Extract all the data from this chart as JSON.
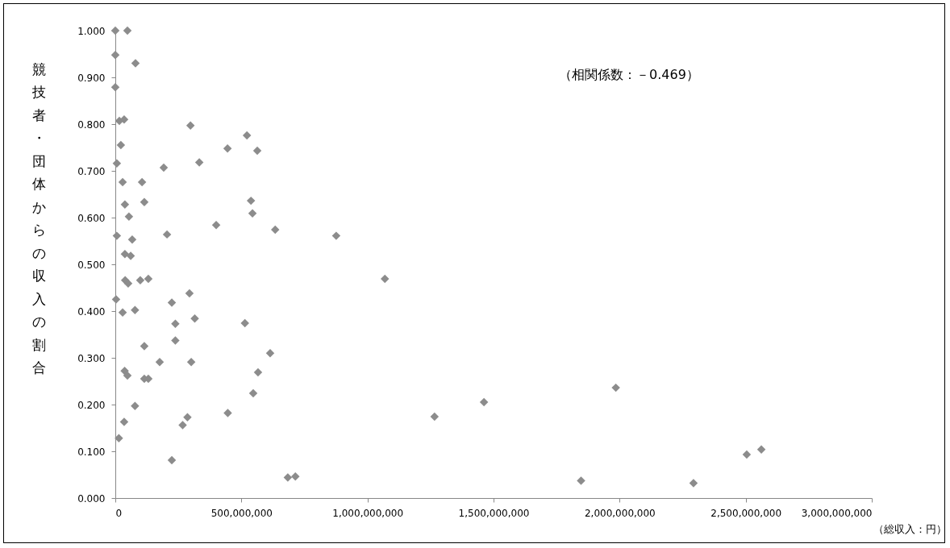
{
  "chart_data": {
    "type": "scatter",
    "ylabel": "競技者・団体からの収入の割合",
    "xlabel": "（総収入：円）",
    "annotations": [
      "（相関係数：－0.469）"
    ],
    "marker": "diamond",
    "grid": false,
    "xlim": [
      0,
      3000000000
    ],
    "xticks": [
      {
        "value": 0,
        "label": "0"
      },
      {
        "value": 500000000,
        "label": "500,000,000"
      },
      {
        "value": 1000000000,
        "label": "1,000,000,000"
      },
      {
        "value": 1500000000,
        "label": "1,500,000,000"
      },
      {
        "value": 2000000000,
        "label": "2,000,000,000"
      },
      {
        "value": 2500000000,
        "label": "2,500,000,000"
      },
      {
        "value": 3000000000,
        "label": "3,000,000,000"
      }
    ],
    "ylim": [
      0,
      1
    ],
    "yticks": [
      {
        "value": 0,
        "label": "0.000"
      },
      {
        "value": 0.1,
        "label": "0.100"
      },
      {
        "value": 0.2,
        "label": "0.200"
      },
      {
        "value": 0.3,
        "label": "0.300"
      },
      {
        "value": 0.4,
        "label": "0.400"
      },
      {
        "value": 0.5,
        "label": "0.500"
      },
      {
        "value": 0.6,
        "label": "0.600"
      },
      {
        "value": 0.7,
        "label": "0.700"
      },
      {
        "value": 0.8,
        "label": "0.800"
      },
      {
        "value": 0.9,
        "label": "0.900"
      },
      {
        "value": 1,
        "label": "1.000"
      }
    ],
    "series": [
      {
        "color": "#8c8c8c",
        "x": [
          0,
          48000000,
          0,
          80000000,
          0,
          16000000,
          35000000,
          298000000,
          522000000,
          445000000,
          563000000,
          22000000,
          6000000,
          192000000,
          333000000,
          29000000,
          106000000,
          38000000,
          115000000,
          538000000,
          54000000,
          544000000,
          400000000,
          634000000,
          6000000,
          67000000,
          205000000,
          38000000,
          61000000,
          876000000,
          1069000000,
          1266000000,
          1462000000,
          684000000,
          714000000,
          39000000,
          51000000,
          99000000,
          131000000,
          3000000,
          29000000,
          78000000,
          224000000,
          294000000,
          238000000,
          315000000,
          514000000,
          238000000,
          115000000,
          176000000,
          301000000,
          614000000,
          37000000,
          48000000,
          115000000,
          131000000,
          566000000,
          547000000,
          78000000,
          446000000,
          286000000,
          267000000,
          35000000,
          14000000,
          224000000,
          1847000000,
          1985000000,
          2293000000,
          2504000000,
          2562000000
        ],
        "values": [
          1.0,
          1.0,
          0.948,
          0.93,
          0.879,
          0.807,
          0.81,
          0.797,
          0.776,
          0.748,
          0.743,
          0.755,
          0.716,
          0.707,
          0.718,
          0.676,
          0.676,
          0.628,
          0.633,
          0.636,
          0.602,
          0.609,
          0.584,
          0.574,
          0.561,
          0.553,
          0.564,
          0.522,
          0.518,
          0.561,
          0.469,
          0.174,
          0.205,
          0.044,
          0.046,
          0.466,
          0.459,
          0.466,
          0.469,
          0.425,
          0.397,
          0.402,
          0.418,
          0.438,
          0.373,
          0.384,
          0.374,
          0.337,
          0.325,
          0.291,
          0.291,
          0.31,
          0.272,
          0.262,
          0.255,
          0.255,
          0.269,
          0.224,
          0.197,
          0.182,
          0.173,
          0.156,
          0.163,
          0.128,
          0.081,
          0.037,
          0.236,
          0.032,
          0.093,
          0.104
        ]
      }
    ]
  }
}
